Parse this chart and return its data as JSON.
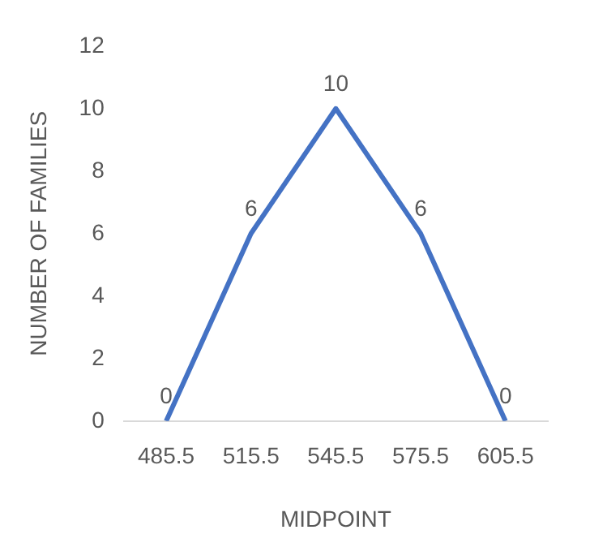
{
  "chart_data": {
    "type": "line",
    "xlabel": "MIDPOINT",
    "ylabel": "NUMBER OF FAMILIES",
    "categories": [
      "485.5",
      "515.5",
      "545.5",
      "575.5",
      "605.5"
    ],
    "series": [
      {
        "color": "#4472c4",
        "values": [
          0,
          6,
          10,
          6,
          0
        ]
      }
    ],
    "ylim": [
      0,
      12
    ],
    "yticks": [
      0,
      2,
      4,
      6,
      8,
      10,
      12
    ],
    "grid": false,
    "legend": false,
    "marker": "none",
    "line_style": "solid",
    "data_labels": true
  }
}
